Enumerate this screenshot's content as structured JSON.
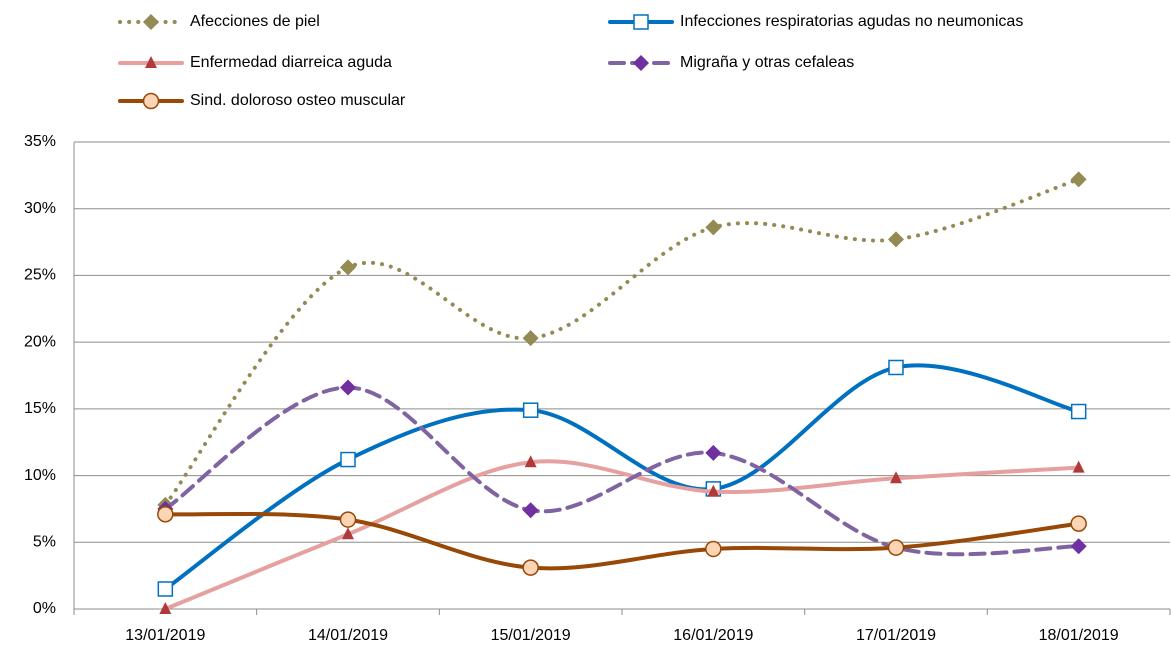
{
  "chart_data": {
    "type": "line",
    "categories": [
      "13/01/2019",
      "14/01/2019",
      "15/01/2019",
      "16/01/2019",
      "17/01/2019",
      "18/01/2019"
    ],
    "series": [
      {
        "name": "Afecciones de piel",
        "color": "#948a54",
        "marker": "diamond",
        "marker_color": "#948a54",
        "dash": "dot",
        "values": [
          7.8,
          25.6,
          20.3,
          28.6,
          27.7,
          32.2
        ]
      },
      {
        "name": "Infecciones respiratorias agudas no neumonicas",
        "color": "#0070c0",
        "marker": "square",
        "marker_color": "#ffffff",
        "dash": "solid",
        "values": [
          1.5,
          11.2,
          14.9,
          9.0,
          18.1,
          14.8
        ]
      },
      {
        "name": "Enfermedad diarreica aguda",
        "color": "#e6a0a0",
        "marker": "triangle",
        "marker_color": "#b03a3a",
        "dash": "solid",
        "values": [
          0,
          5.6,
          11.0,
          8.8,
          9.8,
          10.6
        ]
      },
      {
        "name": "Migraña y otras cefaleas",
        "color": "#8064a2",
        "marker": "diamond",
        "marker_color": "#7030a0",
        "dash": "dash",
        "values": [
          7.5,
          16.6,
          7.4,
          11.7,
          4.6,
          4.7
        ]
      },
      {
        "name": "Sind. doloroso osteo muscular",
        "color": "#984807",
        "marker": "circle",
        "marker_color": "#fcd5b5",
        "dash": "solid",
        "values": [
          7.1,
          6.7,
          3.1,
          4.5,
          4.6,
          6.4
        ]
      }
    ],
    "ylim": [
      0,
      35
    ],
    "yticks": [
      {
        "value": 0,
        "label": "0%"
      },
      {
        "value": 5,
        "label": "5%"
      },
      {
        "value": 10,
        "label": "10%"
      },
      {
        "value": 15,
        "label": "15%"
      },
      {
        "value": 20,
        "label": "20%"
      },
      {
        "value": 25,
        "label": "25%"
      },
      {
        "value": 30,
        "label": "30%"
      },
      {
        "value": 35,
        "label": "35%"
      }
    ],
    "grid": true,
    "legend": "top"
  }
}
